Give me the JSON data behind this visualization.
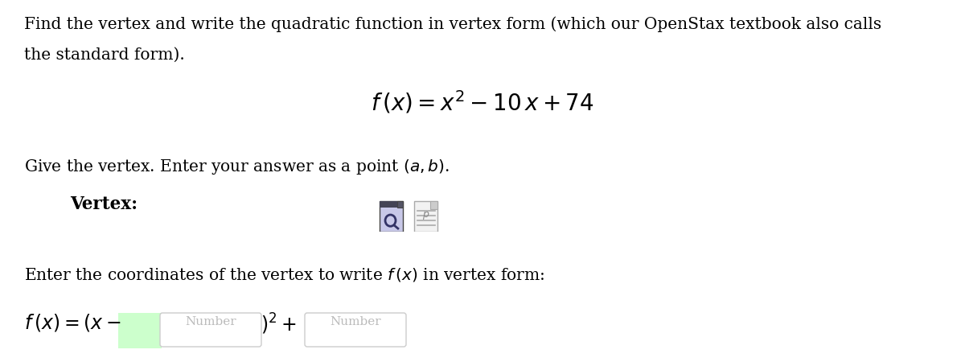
{
  "bg_color": "#ffffff",
  "text_color": "#000000",
  "line1": "Find the vertex and write the quadratic function in vertex form (which our OpenStax textbook also calls",
  "line2": "the standard form).",
  "formula": "$f\\,(x) = x^2 - 10\\,x + 74$",
  "instruction1": "Give the vertex. Enter your answer as a point $(a, b)$.",
  "vertex_label": "Vertex:",
  "instruction2": "Enter the coordinates of the vertex to write $f\\,(x)$ in vertex form:",
  "placeholder1": "Number",
  "placeholder2": "Number",
  "input_box_color": "#ffffff",
  "input_box_edge": "#cccccc",
  "font_size_body": 14.5,
  "font_size_formula": 20,
  "font_size_bottom": 17
}
